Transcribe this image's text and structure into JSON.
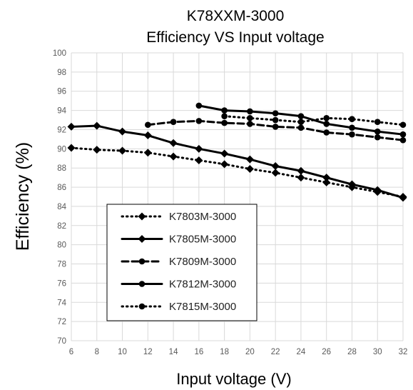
{
  "chart_data": {
    "type": "line",
    "title": "K78XXM-3000",
    "subtitle": "Efficiency VS Input voltage",
    "xlabel": "Input voltage (V)",
    "ylabel": "Efficiency (%)",
    "xlim": [
      6,
      32
    ],
    "ylim": [
      70,
      100
    ],
    "xticks": [
      6,
      8,
      10,
      12,
      14,
      16,
      18,
      20,
      22,
      24,
      26,
      28,
      30,
      32
    ],
    "yticks": [
      70,
      72,
      74,
      76,
      78,
      80,
      82,
      84,
      86,
      88,
      90,
      92,
      94,
      96,
      98,
      100
    ],
    "grid": true,
    "legend_position": "lower-left",
    "series": [
      {
        "name": "K7803M-3000",
        "line": "dotted",
        "marker": "diamond",
        "x": [
          6,
          8,
          10,
          12,
          14,
          16,
          18,
          20,
          22,
          24,
          26,
          28,
          30,
          32
        ],
        "y": [
          90.1,
          89.9,
          89.8,
          89.6,
          89.2,
          88.8,
          88.4,
          87.9,
          87.5,
          87.0,
          86.5,
          86.0,
          85.5,
          85.0
        ]
      },
      {
        "name": "K7805M-3000",
        "line": "solid",
        "marker": "diamond",
        "x": [
          6,
          8,
          10,
          12,
          14,
          16,
          18,
          20,
          22,
          24,
          26,
          28,
          30,
          32
        ],
        "y": [
          92.3,
          92.4,
          91.8,
          91.4,
          90.6,
          90.0,
          89.5,
          88.9,
          88.2,
          87.7,
          87.0,
          86.3,
          85.7,
          84.9
        ]
      },
      {
        "name": "K7809M-3000",
        "line": "dashed",
        "marker": "circle",
        "x": [
          12,
          14,
          16,
          18,
          20,
          22,
          24,
          26,
          28,
          30,
          32
        ],
        "y": [
          92.5,
          92.8,
          92.9,
          92.7,
          92.6,
          92.3,
          92.2,
          91.7,
          91.5,
          91.2,
          90.9
        ]
      },
      {
        "name": "K7812M-3000",
        "line": "solid",
        "marker": "circle",
        "x": [
          16,
          18,
          20,
          22,
          24,
          26,
          28,
          30,
          32
        ],
        "y": [
          94.5,
          94.0,
          93.9,
          93.7,
          93.4,
          92.6,
          92.2,
          91.8,
          91.5
        ]
      },
      {
        "name": "K7815M-3000",
        "line": "dotted",
        "marker": "circle",
        "x": [
          18,
          20,
          22,
          24,
          26,
          28,
          30,
          32
        ],
        "y": [
          93.4,
          93.2,
          93.0,
          92.8,
          93.2,
          93.1,
          92.8,
          92.5
        ]
      }
    ]
  }
}
